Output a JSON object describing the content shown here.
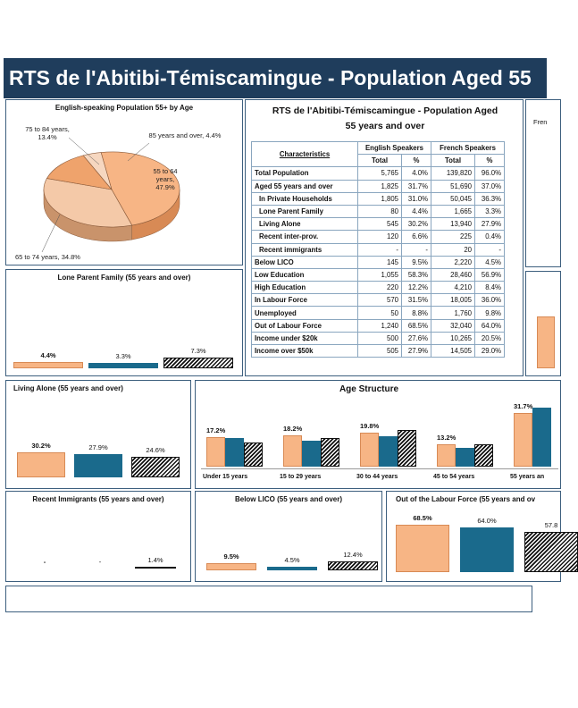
{
  "header": {
    "title": "RTS de l'Abitibi-Témiscamingue - Population Aged 55"
  },
  "colors": {
    "banner": "#1f3d5c",
    "english": "#f7b585",
    "french": "#1a6a8c",
    "other_pattern": "hatched"
  },
  "right_edge_fragment": "Fren",
  "table": {
    "title_line1": "RTS de l'Abitibi-Témiscamingue - Population Aged",
    "title_line2": "55 years and over",
    "col_characteristics": "Characteristics",
    "col_english": "English Speakers",
    "col_french": "French Speakers",
    "sub_total": "Total",
    "sub_pct": "%",
    "rows": [
      {
        "label": "Total Population",
        "en_total": "5,765",
        "en_pct": "4.0%",
        "fr_total": "139,820",
        "fr_pct": "96.0%"
      },
      {
        "label": "Aged 55 years and over",
        "en_total": "1,825",
        "en_pct": "31.7%",
        "fr_total": "51,690",
        "fr_pct": "37.0%"
      },
      {
        "label": "In Private Households",
        "en_total": "1,805",
        "en_pct": "31.0%",
        "fr_total": "50,045",
        "fr_pct": "36.3%"
      },
      {
        "label": "Lone Parent Family",
        "en_total": "80",
        "en_pct": "4.4%",
        "fr_total": "1,665",
        "fr_pct": "3.3%"
      },
      {
        "label": "Living Alone",
        "en_total": "545",
        "en_pct": "30.2%",
        "fr_total": "13,940",
        "fr_pct": "27.9%"
      },
      {
        "label": "Recent inter-prov.",
        "en_total": "120",
        "en_pct": "6.6%",
        "fr_total": "225",
        "fr_pct": "0.4%"
      },
      {
        "label": "Recent immigrants",
        "en_total": "-",
        "en_pct": "-",
        "fr_total": "20",
        "fr_pct": "-"
      },
      {
        "label": "Below LICO",
        "en_total": "145",
        "en_pct": "9.5%",
        "fr_total": "2,220",
        "fr_pct": "4.5%"
      },
      {
        "label": "Low Education",
        "en_total": "1,055",
        "en_pct": "58.3%",
        "fr_total": "28,460",
        "fr_pct": "56.9%"
      },
      {
        "label": "High Education",
        "en_total": "220",
        "en_pct": "12.2%",
        "fr_total": "4,210",
        "fr_pct": "8.4%"
      },
      {
        "label": "In Labour Force",
        "en_total": "570",
        "en_pct": "31.5%",
        "fr_total": "18,005",
        "fr_pct": "36.0%"
      },
      {
        "label": "Unemployed",
        "en_total": "50",
        "en_pct": "8.8%",
        "fr_total": "1,760",
        "fr_pct": "9.8%"
      },
      {
        "label": "Out of Labour Force",
        "en_total": "1,240",
        "en_pct": "68.5%",
        "fr_total": "32,040",
        "fr_pct": "64.0%"
      },
      {
        "label": "Income under $20k",
        "en_total": "500",
        "en_pct": "27.6%",
        "fr_total": "10,265",
        "fr_pct": "20.5%"
      },
      {
        "label": "Income over $50k",
        "en_total": "505",
        "en_pct": "27.9%",
        "fr_total": "14,505",
        "fr_pct": "29.0%"
      }
    ]
  },
  "chart_data": [
    {
      "id": "pie",
      "type": "pie",
      "title": "English-speaking Population 55+ by Age",
      "labels": [
        "55 to 64 years",
        "65 to 74 years",
        "75 to 84 years",
        "85 years and over"
      ],
      "label_text": [
        "55 to 64 years, 47.9%",
        "65 to 74 years, 34.8%",
        "75 to 84 years, 13.4%",
        "85 years and over, 4.4%"
      ],
      "values": [
        47.9,
        34.8,
        13.4,
        4.4
      ]
    },
    {
      "id": "lone",
      "type": "bar",
      "title": "Lone Parent Family (55 years and over)",
      "values": [
        4.4,
        3.3,
        7.3
      ],
      "labels": [
        "4.4%",
        "3.3%",
        "7.3%"
      ],
      "ylim": [
        0,
        100
      ]
    },
    {
      "id": "alone",
      "type": "bar",
      "title": "Living Alone (55 years and over)",
      "values": [
        30.2,
        27.9,
        24.6
      ],
      "labels": [
        "30.2%",
        "27.9%",
        "24.6%"
      ],
      "ylim": [
        0,
        100
      ]
    },
    {
      "id": "age",
      "type": "bar",
      "title": "Age Structure",
      "categories": [
        "Under 15 years",
        "15 to 29 years",
        "30 to 44 years",
        "45 to 54 years",
        "55 years an"
      ],
      "series": [
        {
          "values": [
            17.2,
            18.2,
            19.8,
            13.2,
            31.7
          ],
          "labels": [
            "17.2%",
            "18.2%",
            "19.8%",
            "13.2%",
            "31.7%"
          ]
        },
        {
          "values": [
            16.8,
            15.5,
            17.8,
            11.0,
            34.5
          ]
        },
        {
          "values": [
            14.0,
            17.0,
            21.5,
            13.0,
            0
          ]
        }
      ],
      "ylim": [
        0,
        40
      ]
    },
    {
      "id": "immig",
      "type": "bar",
      "title": "Recent Immigrants (55 years and over)",
      "values": [
        0,
        0,
        1.4
      ],
      "labels": [
        "-",
        "-",
        "1.4%"
      ],
      "ylim": [
        0,
        100
      ]
    },
    {
      "id": "lico",
      "type": "bar",
      "title": "Below LICO (55 years and over)",
      "values": [
        9.5,
        4.5,
        12.4
      ],
      "labels": [
        "9.5%",
        "4.5%",
        "12.4%"
      ],
      "ylim": [
        0,
        100
      ]
    },
    {
      "id": "olf",
      "type": "bar",
      "title": "Out of the Labour Force (55 years and ov",
      "values": [
        68.5,
        64.0,
        57.8
      ],
      "labels": [
        "68.5%",
        "64.0%",
        "57.8"
      ],
      "ylim": [
        0,
        100
      ]
    }
  ]
}
